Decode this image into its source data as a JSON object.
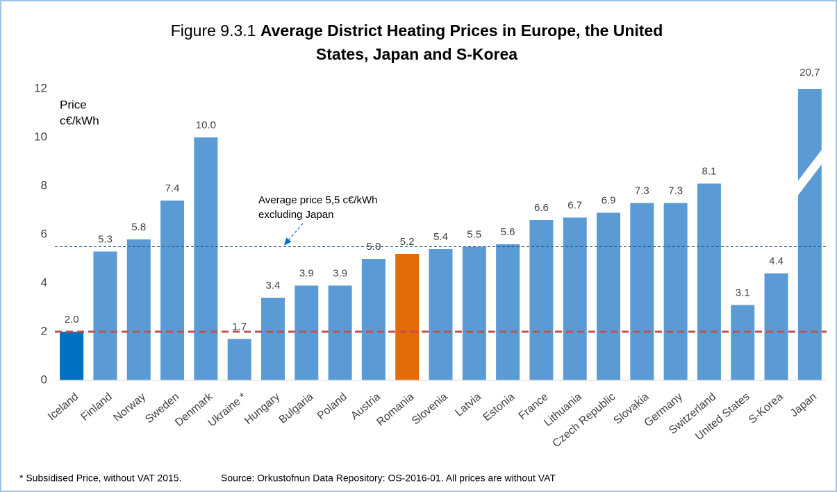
{
  "chart_data": {
    "type": "bar",
    "figure_number": "Figure 9.3.1",
    "title": [
      "Average District Heating Prices in Europe, the United",
      "States, Japan and S-Korea"
    ],
    "y_axis_label": [
      "Price",
      "c€/kWh"
    ],
    "categories": [
      "Iceland",
      "Finland",
      "Norway",
      "Sweden",
      "Denmark",
      "Ukraine *",
      "Hungary",
      "Bulgaria",
      "Poland",
      "Austria",
      "Romania",
      "Slovenia",
      "Latvia",
      "Estonia",
      "France",
      "Lithuania",
      "Czech Republic",
      "Slovakia",
      "Germany",
      "Switzerland",
      "United States",
      "S-Korea",
      "Japan"
    ],
    "values": [
      2.0,
      5.3,
      5.8,
      7.4,
      10.0,
      1.7,
      3.4,
      3.9,
      3.9,
      5.0,
      5.2,
      5.4,
      5.5,
      5.6,
      6.6,
      6.7,
      6.9,
      7.3,
      7.3,
      8.1,
      3.1,
      4.4,
      20.7
    ],
    "value_labels": [
      "2.0",
      "5.3",
      "5.8",
      "7.4",
      "10.0",
      "1.7",
      "3.4",
      "3.9",
      "3.9",
      "5.0",
      "5.2",
      "5.4",
      "5.5",
      "5.6",
      "6.6",
      "6.7",
      "6.9",
      "7.3",
      "7.3",
      "8.1",
      "3.1",
      "4.4",
      "20,7"
    ],
    "colors": [
      "#0070c0",
      "#5b9bd5",
      "#5b9bd5",
      "#5b9bd5",
      "#5b9bd5",
      "#5b9bd5",
      "#5b9bd5",
      "#5b9bd5",
      "#5b9bd5",
      "#5b9bd5",
      "#e36c09",
      "#5b9bd5",
      "#5b9bd5",
      "#5b9bd5",
      "#5b9bd5",
      "#5b9bd5",
      "#5b9bd5",
      "#5b9bd5",
      "#5b9bd5",
      "#5b9bd5",
      "#5b9bd5",
      "#5b9bd5",
      "#5b9bd5"
    ],
    "ylim": [
      0,
      12
    ],
    "yticks": [
      0,
      2,
      4,
      6,
      8,
      10,
      12
    ],
    "reference_lines": [
      {
        "value": 5.5,
        "color": "#1f4e79",
        "style": "dashed"
      },
      {
        "value": 2.0,
        "color": "#c0504d",
        "style": "dashed"
      }
    ],
    "annotation": [
      "Average price 5,5 c€/kWh",
      "excluding Japan"
    ],
    "footnotes": [
      "* Subsidised Price, without VAT 2015.",
      "Source: Orkustofnun Data Repository: OS-2016-01. All prices are without VAT"
    ]
  }
}
